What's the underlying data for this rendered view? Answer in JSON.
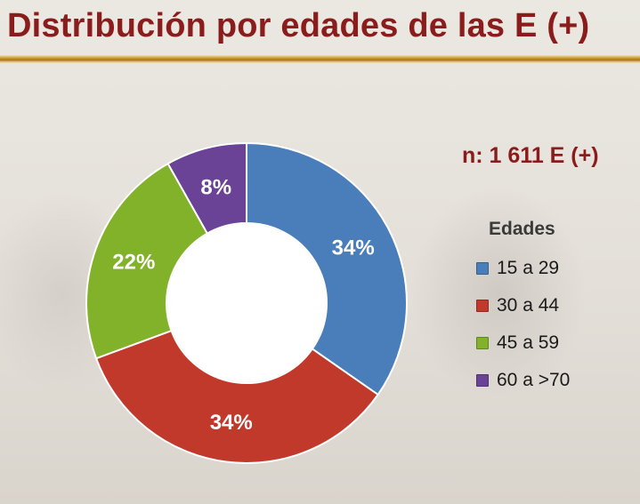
{
  "slide": {
    "title": "Distribución por edades de las E (+)",
    "n_note": "n: 1 611 E (+)"
  },
  "chart_data": {
    "type": "pie",
    "style": "donut",
    "legend_title": "Edades",
    "legend_position": "right",
    "categories": [
      "15 a 29",
      "30 a 44",
      "45 a 59",
      "60 a >70"
    ],
    "values": [
      34,
      34,
      22,
      8
    ],
    "unit": "%",
    "data_labels": [
      "34%",
      "34%",
      "22%",
      "8%"
    ],
    "colors": [
      "#4a7ebb",
      "#c0392b",
      "#82b229",
      "#6a4296"
    ]
  }
}
